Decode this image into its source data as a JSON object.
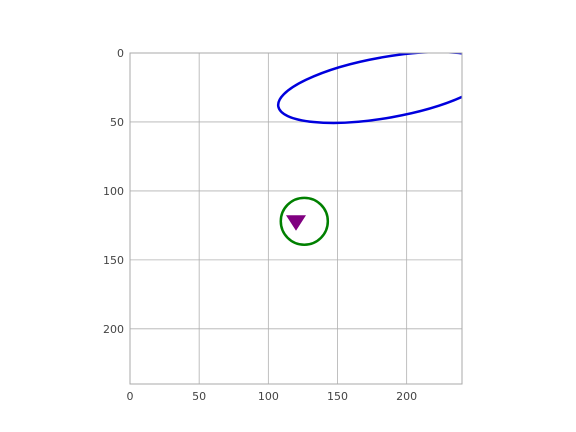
{
  "chart_data": {
    "type": "scatter",
    "title": "",
    "xlabel": "",
    "ylabel": "",
    "xlim": [
      0,
      240
    ],
    "ylim": [
      240,
      0
    ],
    "y_inverted": true,
    "grid": true,
    "aspect": "equal",
    "x_ticks": [
      0,
      50,
      100,
      150,
      200
    ],
    "y_ticks": [
      0,
      50,
      100,
      150,
      200
    ],
    "x_tick_labels": [
      "0",
      "50",
      "100",
      "150",
      "200"
    ],
    "y_tick_labels": [
      "0",
      "50",
      "100",
      "150",
      "200"
    ],
    "shapes": [
      {
        "kind": "ellipse",
        "name": "blue-ellipse",
        "center": [
          185,
          25
        ],
        "half_width": 79,
        "half_height": 22,
        "angle_deg": -10,
        "color": "#0000dd"
      },
      {
        "kind": "ellipse",
        "name": "green-ellipse",
        "center": [
          126,
          122
        ],
        "half_width": 17,
        "half_height": 17,
        "angle_deg": 0,
        "color": "#008000"
      }
    ],
    "markers": [
      {
        "kind": "triangle-down",
        "name": "purple-triangle",
        "x": 120,
        "y": 122,
        "color": "#800080"
      }
    ]
  }
}
